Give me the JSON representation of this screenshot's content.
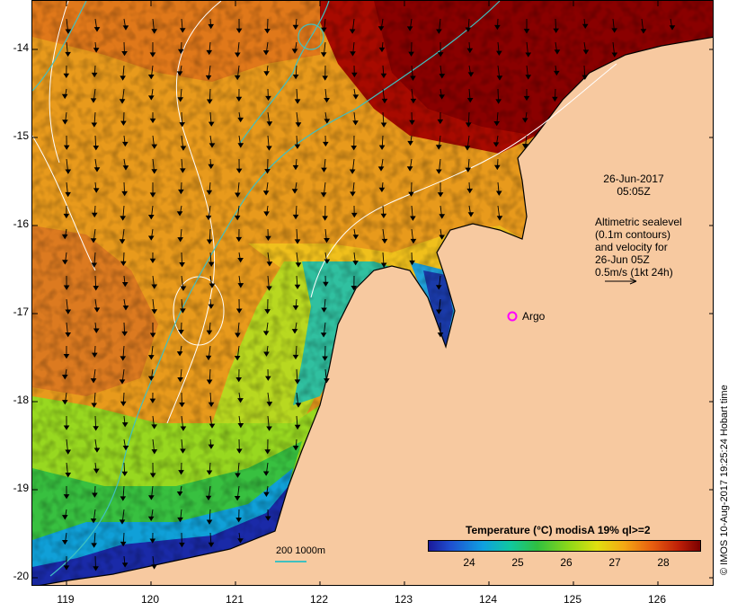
{
  "map": {
    "lat_range": [
      -20.1,
      -13.6
    ],
    "lon_range": [
      118.65,
      126.7
    ],
    "lat_ticks": [
      "-14",
      "-15",
      "-16",
      "-17",
      "-18",
      "-19",
      "-20"
    ],
    "lon_ticks": [
      "119",
      "120",
      "121",
      "122",
      "123",
      "124",
      "125",
      "126"
    ],
    "colors": {
      "land": "#f7c9a0",
      "contour": "#ffffff",
      "isobath": "#40c0c0",
      "argo": "#ff00ff"
    }
  },
  "annotations": {
    "datetime_line1": "26-Jun-2017",
    "datetime_line2": "05:05Z",
    "legend_line1": "Altimetric sealevel",
    "legend_line2": "(0.1m contours)",
    "legend_line3": "and velocity for",
    "legend_line4": "26-Jun 05Z",
    "legend_line5": "0.5m/s (1kt 24h)"
  },
  "argo": {
    "label": "Argo",
    "lat": -17.05,
    "lon": 124.3
  },
  "scale": {
    "label": "200  1000m"
  },
  "colorbar": {
    "title": "Temperature (°C) modisA 19% ql>=2",
    "ticks": [
      "24",
      "25",
      "26",
      "27",
      "28"
    ],
    "range": [
      23.1,
      28.7
    ]
  },
  "credit": "© IMOS 10-Aug-2017 19:25:24 Hobart time"
}
